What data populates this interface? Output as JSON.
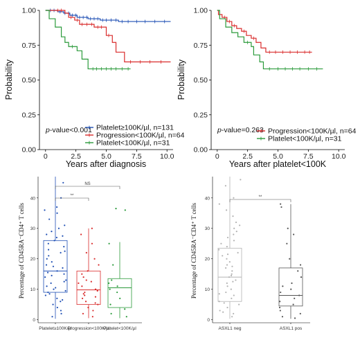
{
  "chart_data": [
    {
      "type": "line",
      "subtype": "kaplan-meier",
      "xlabel": "Years after diagnosis",
      "ylabel": "Probability",
      "xlim": [
        -0.5,
        10.5
      ],
      "ylim": [
        0,
        1
      ],
      "xticks": [
        "0",
        "2.5",
        "5.0",
        "7.5",
        "10.0"
      ],
      "yticks": [
        "0.00",
        "0.25",
        "0.50",
        "0.75",
        "1.00"
      ],
      "annotation": "p-value<0.001",
      "annotation_italic": "p",
      "annotation_rest": "-value<0.001",
      "legend_position": "bottom-right",
      "series": [
        {
          "name": "Platelet≥100K/µl, n=131",
          "color": "#1f4fb4",
          "steps": [
            [
              0,
              1.0
            ],
            [
              1.0,
              0.99
            ],
            [
              1.5,
              0.98
            ],
            [
              2.0,
              0.965
            ],
            [
              2.6,
              0.95
            ],
            [
              3.5,
              0.94
            ],
            [
              4.5,
              0.93
            ],
            [
              6.0,
              0.92
            ],
            [
              10.3,
              0.92
            ]
          ],
          "censor": [
            0.4,
            0.7,
            1.2,
            1.6,
            1.9,
            2.2,
            2.5,
            2.8,
            3.1,
            3.4,
            3.7,
            4.0,
            4.3,
            4.7,
            5.0,
            5.4,
            5.8,
            6.3,
            6.8,
            7.5,
            8.2,
            9.0,
            9.8
          ]
        },
        {
          "name": "Progression<100K/µl, n=64",
          "color": "#d92b2b",
          "steps": [
            [
              0,
              1.0
            ],
            [
              1.6,
              0.98
            ],
            [
              1.9,
              0.95
            ],
            [
              2.4,
              0.93
            ],
            [
              2.8,
              0.9
            ],
            [
              4.0,
              0.88
            ],
            [
              5.0,
              0.82
            ],
            [
              5.5,
              0.77
            ],
            [
              5.8,
              0.7
            ],
            [
              6.5,
              0.63
            ],
            [
              10.3,
              0.63
            ]
          ],
          "censor": [
            1.0,
            1.3,
            2.1,
            2.6,
            3.0,
            3.4,
            3.8,
            4.3,
            4.6,
            5.2,
            7.0,
            7.8,
            8.6,
            9.5
          ]
        },
        {
          "name": "Platelet<100K/µl, n=31",
          "color": "#2a9a3a",
          "steps": [
            [
              0,
              1.0
            ],
            [
              0.3,
              0.94
            ],
            [
              0.8,
              0.88
            ],
            [
              1.3,
              0.81
            ],
            [
              1.6,
              0.77
            ],
            [
              1.9,
              0.74
            ],
            [
              2.6,
              0.71
            ],
            [
              3.0,
              0.65
            ],
            [
              3.5,
              0.58
            ],
            [
              7.0,
              0.58
            ]
          ],
          "censor": [
            2.2,
            3.9,
            4.2,
            4.6,
            5.0,
            5.4,
            5.8,
            6.3,
            6.8
          ]
        }
      ]
    },
    {
      "type": "line",
      "subtype": "kaplan-meier",
      "xlabel": "Years after platelet<100K",
      "ylabel": "Probability",
      "xlim": [
        -0.5,
        10.5
      ],
      "ylim": [
        0,
        1
      ],
      "xticks": [
        "0",
        "2.5",
        "5.0",
        "7.5",
        "10.0"
      ],
      "yticks": [
        "0.00",
        "0.25",
        "0.50",
        "0.75",
        "1.00"
      ],
      "annotation": "p-value=0.263",
      "annotation_italic": "p",
      "annotation_rest": "-value=0.263",
      "legend_position": "bottom-right",
      "series": [
        {
          "name": "Progression<100K/µl, n=64",
          "color": "#d92b2b",
          "steps": [
            [
              0,
              1.0
            ],
            [
              0.1,
              0.97
            ],
            [
              0.4,
              0.95
            ],
            [
              0.8,
              0.92
            ],
            [
              1.2,
              0.89
            ],
            [
              1.6,
              0.87
            ],
            [
              2.0,
              0.85
            ],
            [
              2.4,
              0.82
            ],
            [
              2.8,
              0.8
            ],
            [
              3.2,
              0.77
            ],
            [
              3.6,
              0.73
            ],
            [
              4.0,
              0.7
            ],
            [
              7.8,
              0.7
            ]
          ],
          "censor": [
            0.6,
            1.0,
            1.4,
            2.2,
            3.0,
            4.3,
            4.8,
            5.4,
            6.0,
            6.6,
            7.2,
            7.6
          ]
        },
        {
          "name": "Platelet<100K/µl, n=31",
          "color": "#2a9a3a",
          "steps": [
            [
              0,
              1.0
            ],
            [
              0.2,
              0.94
            ],
            [
              0.7,
              0.88
            ],
            [
              1.2,
              0.84
            ],
            [
              1.7,
              0.81
            ],
            [
              2.2,
              0.77
            ],
            [
              2.8,
              0.74
            ],
            [
              3.0,
              0.68
            ],
            [
              3.5,
              0.63
            ],
            [
              3.8,
              0.58
            ],
            [
              8.7,
              0.58
            ]
          ],
          "censor": [
            2.5,
            4.3,
            5.0,
            5.6,
            6.2,
            6.8,
            7.5,
            8.2
          ]
        }
      ]
    },
    {
      "type": "box",
      "ylabel": "Percentage of CD45RA⁻CD4⁺ T cells",
      "ylim": [
        -1,
        47
      ],
      "yticks": [
        "0",
        "10",
        "20",
        "30",
        "40"
      ],
      "categories": [
        "Platelet≥100K/µl",
        "Progression<100K/µl",
        "Platelet<100K/µl"
      ],
      "colors": [
        "#1f4fb4",
        "#d92b2b",
        "#2a9a3a"
      ],
      "boxes": [
        {
          "q1": 9,
          "median": 16,
          "q3": 26,
          "wlo": 0.3,
          "whi": 47
        },
        {
          "q1": 5,
          "median": 9.8,
          "q3": 16,
          "wlo": 0.5,
          "whi": 30
        },
        {
          "q1": 4,
          "median": 10.5,
          "q3": 13.5,
          "wlo": 0.5,
          "whi": 25.5
        }
      ],
      "points": [
        [
          1,
          3,
          5,
          6,
          7,
          8,
          9,
          9.5,
          10,
          11,
          12,
          12.5,
          13,
          14,
          15,
          15.5,
          16,
          17,
          18,
          19,
          20,
          21,
          22,
          23,
          24,
          25,
          26,
          27,
          28,
          29,
          30,
          31,
          33,
          35,
          36,
          37,
          40,
          45,
          2,
          4,
          6.5,
          8.5,
          10.5,
          14.5,
          17.5,
          22.5,
          27.5
        ],
        [
          1,
          2,
          3,
          4,
          5,
          6,
          7,
          8,
          8.5,
          9,
          9.5,
          10,
          11,
          12,
          13,
          14,
          15,
          16,
          18,
          20,
          22,
          25,
          28,
          30,
          5.5,
          7.5,
          12.5
        ],
        [
          1,
          2,
          3.5,
          5,
          7,
          9,
          10,
          11,
          12,
          13,
          18,
          25,
          36,
          36.5
        ]
      ],
      "significance": [
        {
          "from": 0,
          "to": 1,
          "label": "**"
        },
        {
          "from": 0,
          "to": 2,
          "label": "NS"
        }
      ]
    },
    {
      "type": "box",
      "ylabel": "Percentage of CD45RA⁻CD4⁺ T cells",
      "ylim": [
        -1,
        47
      ],
      "yticks": [
        "0",
        "10",
        "20",
        "30",
        "40"
      ],
      "categories": [
        "ASXL1 neg",
        "ASXL1 pos"
      ],
      "colors": [
        "#b3b3b3",
        "#555555"
      ],
      "boxes": [
        {
          "q1": 6,
          "median": 14,
          "q3": 23.5,
          "wlo": 0.3,
          "whi": 47
        },
        {
          "q1": 4.5,
          "median": 8,
          "q3": 17,
          "wlo": 0.3,
          "whi": 38
        }
      ],
      "points": [
        [
          1,
          2,
          3,
          4,
          5,
          6,
          7,
          8,
          9,
          10,
          11,
          12,
          13,
          14,
          15,
          16,
          17,
          18,
          19,
          20,
          21,
          22,
          23,
          24,
          25,
          26,
          27,
          28,
          29,
          30,
          31,
          32,
          34,
          36,
          38,
          40,
          44,
          46,
          2.5,
          5.5,
          8.5,
          12.5,
          14.5,
          17.5,
          21.5
        ],
        [
          0.5,
          1,
          2,
          3,
          4,
          5,
          6,
          7,
          8,
          9,
          10,
          11,
          12,
          14,
          16,
          18,
          20,
          25,
          28,
          30,
          37,
          38
        ]
      ],
      "significance": [
        {
          "from": 0,
          "to": 1,
          "label": "**"
        }
      ]
    }
  ]
}
